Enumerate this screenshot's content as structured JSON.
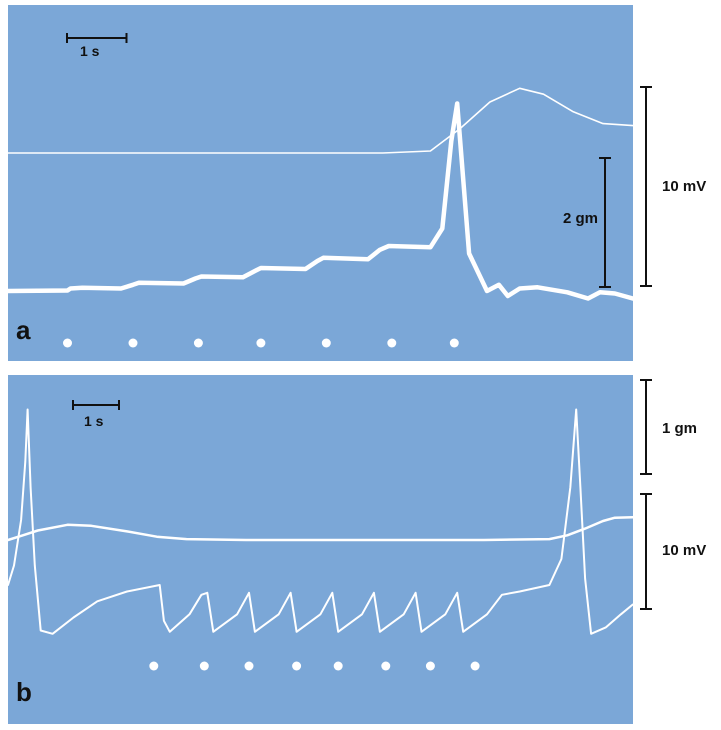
{
  "chart_data": [
    {
      "panel": "a",
      "type": "line",
      "panel_label": "a",
      "time_scale_label": "1 s",
      "scale_bars": [
        {
          "label": "10 mV",
          "span": 10,
          "unit": "mV"
        },
        {
          "label": "2 gm",
          "span": 2,
          "unit": "gm"
        }
      ],
      "x_range_s": [
        0,
        10.5
      ],
      "series": [
        {
          "role": "membrane-potential",
          "points": [
            [
              0,
              0
            ],
            [
              3.2,
              0
            ],
            [
              6.3,
              0
            ],
            [
              7.1,
              0.2
            ],
            [
              7.6,
              2.5
            ],
            [
              8.1,
              5.2
            ],
            [
              8.6,
              6.6
            ],
            [
              9.0,
              6.0
            ],
            [
              9.5,
              4.2
            ],
            [
              10.0,
              3.0
            ],
            [
              10.5,
              2.8
            ]
          ]
        },
        {
          "role": "tension",
          "points": [
            [
              0,
              0
            ],
            [
              1.0,
              0.02
            ],
            [
              1.05,
              0.1
            ],
            [
              1.25,
              0.13
            ],
            [
              1.9,
              0.1
            ],
            [
              2.1,
              0.25
            ],
            [
              2.2,
              0.33
            ],
            [
              2.95,
              0.3
            ],
            [
              3.15,
              0.5
            ],
            [
              3.25,
              0.58
            ],
            [
              3.95,
              0.55
            ],
            [
              4.15,
              0.8
            ],
            [
              4.25,
              0.92
            ],
            [
              5.0,
              0.88
            ],
            [
              5.2,
              1.2
            ],
            [
              5.3,
              1.33
            ],
            [
              6.05,
              1.27
            ],
            [
              6.25,
              1.65
            ],
            [
              6.4,
              1.8
            ],
            [
              7.1,
              1.75
            ],
            [
              7.3,
              2.5
            ],
            [
              7.45,
              6.0
            ],
            [
              7.55,
              7.5
            ],
            [
              7.75,
              1.5
            ],
            [
              8.05,
              0
            ],
            [
              8.25,
              0.25
            ],
            [
              8.4,
              -0.2
            ],
            [
              8.6,
              0.1
            ],
            [
              8.9,
              0.15
            ],
            [
              9.4,
              -0.05
            ],
            [
              9.75,
              -0.3
            ],
            [
              9.95,
              -0.05
            ],
            [
              10.2,
              -0.1
            ],
            [
              10.5,
              -0.3
            ]
          ]
        }
      ],
      "stimulus_times_s": [
        1.0,
        2.1,
        3.2,
        4.25,
        5.35,
        6.45,
        7.5
      ]
    },
    {
      "panel": "b",
      "type": "line",
      "panel_label": "b",
      "time_scale_label": "1 s",
      "scale_bars": [
        {
          "label": "1 gm",
          "span": 1,
          "unit": "gm"
        },
        {
          "label": "10 mV",
          "span": 10,
          "unit": "mV"
        }
      ],
      "x_range_s": [
        0,
        10.5
      ],
      "series": [
        {
          "role": "membrane-potential",
          "points": [
            [
              0,
              0
            ],
            [
              0.25,
              0.5
            ],
            [
              0.5,
              1.0
            ],
            [
              1.0,
              1.6
            ],
            [
              1.4,
              1.5
            ],
            [
              2.0,
              0.9
            ],
            [
              2.5,
              0.35
            ],
            [
              3.0,
              0.1
            ],
            [
              4.0,
              0
            ],
            [
              6.0,
              0
            ],
            [
              8.0,
              0
            ],
            [
              9.1,
              0.1
            ],
            [
              9.4,
              0.5
            ],
            [
              9.7,
              1.2
            ],
            [
              10.0,
              2.0
            ],
            [
              10.2,
              2.35
            ],
            [
              10.5,
              2.4
            ]
          ]
        },
        {
          "role": "tension",
          "points": [
            [
              0,
              0
            ],
            [
              0.1,
              0.3
            ],
            [
              0.22,
              1.0
            ],
            [
              0.29,
              1.9
            ],
            [
              0.33,
              2.7
            ],
            [
              0.38,
              1.5
            ],
            [
              0.45,
              0.3
            ],
            [
              0.55,
              -0.7
            ],
            [
              0.75,
              -0.75
            ],
            [
              1.1,
              -0.5
            ],
            [
              1.5,
              -0.25
            ],
            [
              2.0,
              -0.1
            ],
            [
              2.55,
              0
            ],
            [
              2.62,
              -0.55
            ],
            [
              2.72,
              -0.72
            ],
            [
              3.05,
              -0.45
            ],
            [
              3.25,
              -0.15
            ],
            [
              3.35,
              -0.12
            ],
            [
              3.45,
              -0.72
            ],
            [
              3.85,
              -0.45
            ],
            [
              4.05,
              -0.12
            ],
            [
              4.15,
              -0.72
            ],
            [
              4.55,
              -0.45
            ],
            [
              4.75,
              -0.12
            ],
            [
              4.85,
              -0.72
            ],
            [
              5.25,
              -0.45
            ],
            [
              5.45,
              -0.12
            ],
            [
              5.55,
              -0.72
            ],
            [
              5.95,
              -0.45
            ],
            [
              6.15,
              -0.12
            ],
            [
              6.25,
              -0.72
            ],
            [
              6.65,
              -0.45
            ],
            [
              6.85,
              -0.12
            ],
            [
              6.95,
              -0.72
            ],
            [
              7.35,
              -0.45
            ],
            [
              7.55,
              -0.12
            ],
            [
              7.65,
              -0.72
            ],
            [
              8.05,
              -0.45
            ],
            [
              8.3,
              -0.15
            ],
            [
              8.6,
              -0.1
            ],
            [
              9.1,
              0
            ],
            [
              9.3,
              0.4
            ],
            [
              9.45,
              1.5
            ],
            [
              9.55,
              2.7
            ],
            [
              9.62,
              1.5
            ],
            [
              9.7,
              0.1
            ],
            [
              9.8,
              -0.75
            ],
            [
              10.05,
              -0.65
            ],
            [
              10.3,
              -0.45
            ],
            [
              10.5,
              -0.3
            ]
          ]
        }
      ],
      "stimulus_times_s": [
        2.45,
        3.3,
        4.05,
        4.85,
        5.55,
        6.35,
        7.1,
        7.85
      ]
    }
  ]
}
